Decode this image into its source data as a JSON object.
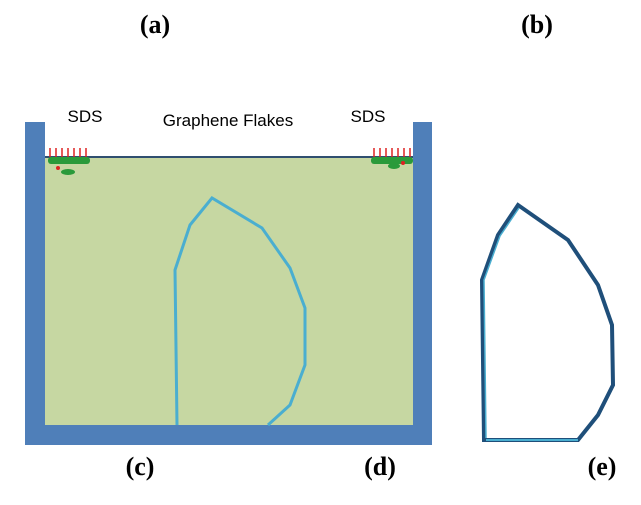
{
  "panels": {
    "a": "(a)",
    "b": "(b)",
    "c": "(c)",
    "d": "(d)",
    "e": "(e)"
  },
  "labels": {
    "sds_left": "SDS",
    "flakes": "Graphene Flakes",
    "sds_right": "SDS"
  }
}
